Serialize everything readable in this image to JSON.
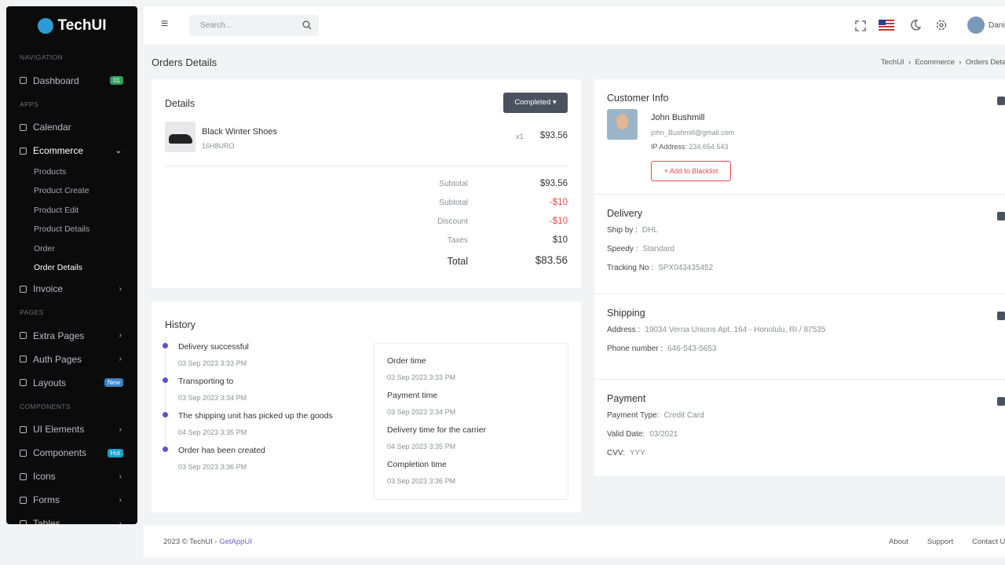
{
  "sidebar": {
    "brand": "TechUI",
    "menu": [
      {
        "section": "NAVIGATION"
      },
      {
        "label": "Dashboard",
        "badge": "01"
      },
      {
        "section": "APPS"
      },
      {
        "label": "Calendar"
      },
      {
        "label": "Ecommerce",
        "open": true
      },
      {
        "sub": "Products"
      },
      {
        "sub": "Product Create"
      },
      {
        "sub": "Product Edit"
      },
      {
        "sub": "Product Details"
      },
      {
        "sub": "Order"
      },
      {
        "sub": "Order Details",
        "active": true
      },
      {
        "label": "Invoice",
        "arrow": true
      },
      {
        "section": "PAGES"
      },
      {
        "label": "Extra Pages",
        "arrow": true
      },
      {
        "label": "Auth Pages",
        "arrow": true
      },
      {
        "label": "Layouts",
        "badge": "New"
      },
      {
        "section": "COMPONENTS"
      },
      {
        "label": "UI Elements",
        "arrow": true
      },
      {
        "label": "Components",
        "badge": "Hot"
      },
      {
        "label": "Icons",
        "arrow": true
      },
      {
        "label": "Forms",
        "arrow": true
      },
      {
        "label": "Tables",
        "arrow": true
      }
    ]
  },
  "topbar": {
    "search": "Search...",
    "user": "Daniel"
  },
  "header": {
    "title": "Orders Details",
    "breadcrumb": [
      "TechUI",
      "Ecommerce",
      "Orders Details"
    ]
  },
  "details": {
    "title": "Details",
    "status": "Completed",
    "item": {
      "name": "Black Winter Shoes",
      "sku": "16H8URO",
      "qty": "x1",
      "price": "$93.56"
    },
    "summary": [
      [
        "Subtotal",
        "$93.56"
      ],
      [
        "Subtotal",
        "-$10"
      ],
      [
        "Discount",
        "-$10"
      ],
      [
        "Taxes",
        "$10"
      ]
    ],
    "total": [
      "Total",
      "$83.56"
    ]
  },
  "history": {
    "title": "History",
    "events": [
      [
        "Delivery successful",
        "03 Sep 2023 3:33 PM"
      ],
      [
        "Transporting to",
        "03 Sep 2023 3:34 PM"
      ],
      [
        "The shipping unit has picked up the goods",
        "04 Sep 2023 3:35 PM"
      ],
      [
        "Order has been created",
        "03 Sep 2023 3:36 PM"
      ]
    ],
    "times": [
      [
        "Order time",
        "03 Sep 2023 3:33 PM"
      ],
      [
        "Payment time",
        "03 Sep 2023 3:34 PM"
      ],
      [
        "Delivery time for the carrier",
        "04 Sep 2023 3:35 PM"
      ],
      [
        "Completion time",
        "03 Sep 2023 3:36 PM"
      ]
    ]
  },
  "customer": {
    "title": "Customer Info",
    "name": "John Bushmill",
    "email": "john_Bushmill@gmail.com",
    "ip_label": "IP Address:",
    "ip": "234.654.543",
    "button": "+ Add to Blacklist"
  },
  "delivery": {
    "title": "Delivery",
    "rows": [
      [
        "Ship by :",
        "DHL"
      ],
      [
        "Speedy :",
        "Standard"
      ],
      [
        "Tracking No :",
        "SPX043435452"
      ]
    ]
  },
  "shipping": {
    "title": "Shipping",
    "rows": [
      [
        "Address :",
        "19034 Verna Unions Apt. 164 - Honolulu, RI / 87535"
      ],
      [
        "Phone number :",
        "646-543-5653"
      ]
    ]
  },
  "payment": {
    "title": "Payment",
    "rows": [
      [
        "Payment Type:",
        "Credit Card"
      ],
      [
        "Valid Date:",
        "03/2021"
      ],
      [
        "CVV:",
        "YYY"
      ]
    ]
  },
  "footer": {
    "copyright": "2023 © TechUI - ",
    "link": "GetAppUI",
    "links": [
      "About",
      "Support",
      "Contact Us"
    ]
  }
}
